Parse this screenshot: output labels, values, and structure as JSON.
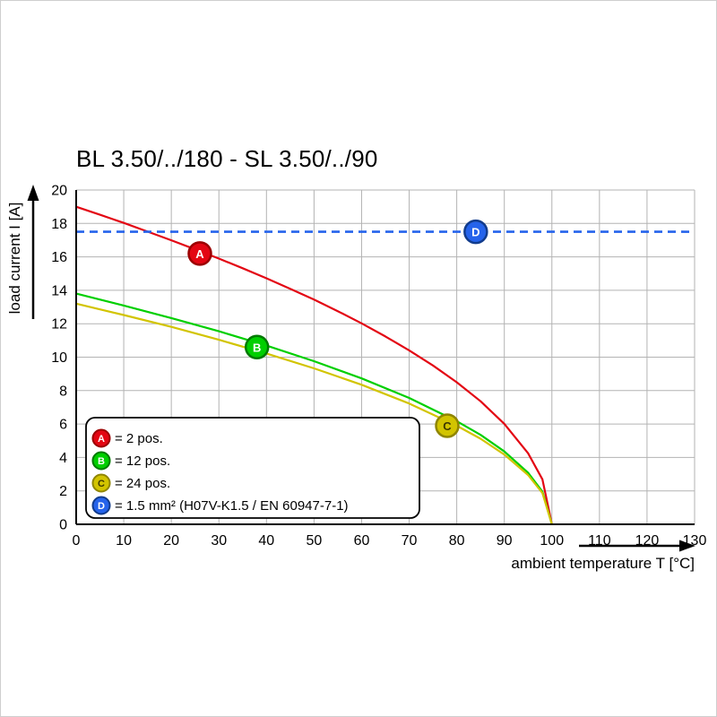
{
  "chart_data": {
    "type": "line",
    "title": "BL 3.50/../180 - SL 3.50/../90",
    "xlabel": "ambient temperature T [°C]",
    "ylabel": "load current I [A]",
    "xlim": [
      0,
      130
    ],
    "ylim": [
      0,
      20
    ],
    "xticks": [
      0,
      10,
      20,
      30,
      40,
      50,
      60,
      70,
      80,
      90,
      100,
      110,
      120,
      130
    ],
    "yticks": [
      0,
      2,
      4,
      6,
      8,
      10,
      12,
      14,
      16,
      18,
      20
    ],
    "grid": true,
    "grid_color": "#b3b3b3",
    "legend_position": "lower-left",
    "series": [
      {
        "name": "A",
        "label": "= 2 pos.",
        "color": "#e30613",
        "marker_border": "#9b0000",
        "letter_color": "#ffffff",
        "dashed": false,
        "marker_pos": [
          26,
          16.2
        ],
        "points": [
          [
            0,
            19
          ],
          [
            5,
            18.52
          ],
          [
            10,
            18.03
          ],
          [
            15,
            17.51
          ],
          [
            20,
            16.99
          ],
          [
            25,
            16.45
          ],
          [
            30,
            15.9
          ],
          [
            35,
            15.32
          ],
          [
            40,
            14.72
          ],
          [
            45,
            14.09
          ],
          [
            50,
            13.44
          ],
          [
            55,
            12.75
          ],
          [
            60,
            12.02
          ],
          [
            65,
            11.24
          ],
          [
            70,
            10.41
          ],
          [
            75,
            9.5
          ],
          [
            80,
            8.5
          ],
          [
            85,
            7.36
          ],
          [
            90,
            6.01
          ],
          [
            95,
            4.25
          ],
          [
            98,
            2.69
          ],
          [
            100,
            0
          ]
        ]
      },
      {
        "name": "B",
        "label": "= 12 pos.",
        "color": "#00cf00",
        "marker_border": "#007a00",
        "letter_color": "#ffffff",
        "dashed": false,
        "marker_pos": [
          38,
          10.6
        ],
        "points": [
          [
            0,
            13.8
          ],
          [
            10,
            13.09
          ],
          [
            20,
            12.34
          ],
          [
            30,
            11.55
          ],
          [
            40,
            10.69
          ],
          [
            50,
            9.76
          ],
          [
            60,
            8.73
          ],
          [
            70,
            7.56
          ],
          [
            80,
            6.17
          ],
          [
            85,
            5.35
          ],
          [
            90,
            4.36
          ],
          [
            95,
            3.09
          ],
          [
            98,
            1.95
          ],
          [
            100,
            0
          ]
        ]
      },
      {
        "name": "C",
        "label": "= 24 pos.",
        "color": "#d2c400",
        "marker_border": "#8f8500",
        "letter_color": "#3d3800",
        "dashed": false,
        "marker_pos": [
          78,
          5.9
        ],
        "points": [
          [
            0,
            13.2
          ],
          [
            10,
            12.52
          ],
          [
            20,
            11.81
          ],
          [
            30,
            11.04
          ],
          [
            40,
            10.22
          ],
          [
            50,
            9.33
          ],
          [
            60,
            8.35
          ],
          [
            70,
            7.23
          ],
          [
            80,
            5.9
          ],
          [
            85,
            5.12
          ],
          [
            90,
            4.17
          ],
          [
            95,
            2.95
          ],
          [
            98,
            1.87
          ],
          [
            100,
            0
          ]
        ]
      },
      {
        "name": "D",
        "label": "= 1.5 mm² (H07V-K1.5 / EN 60947-7-1)",
        "color": "#2563eb",
        "marker_border": "#123c8c",
        "letter_color": "#ffffff",
        "dashed": true,
        "marker_pos": [
          84,
          17.5
        ],
        "points": [
          [
            0,
            17.5
          ],
          [
            130,
            17.5
          ]
        ]
      }
    ]
  }
}
